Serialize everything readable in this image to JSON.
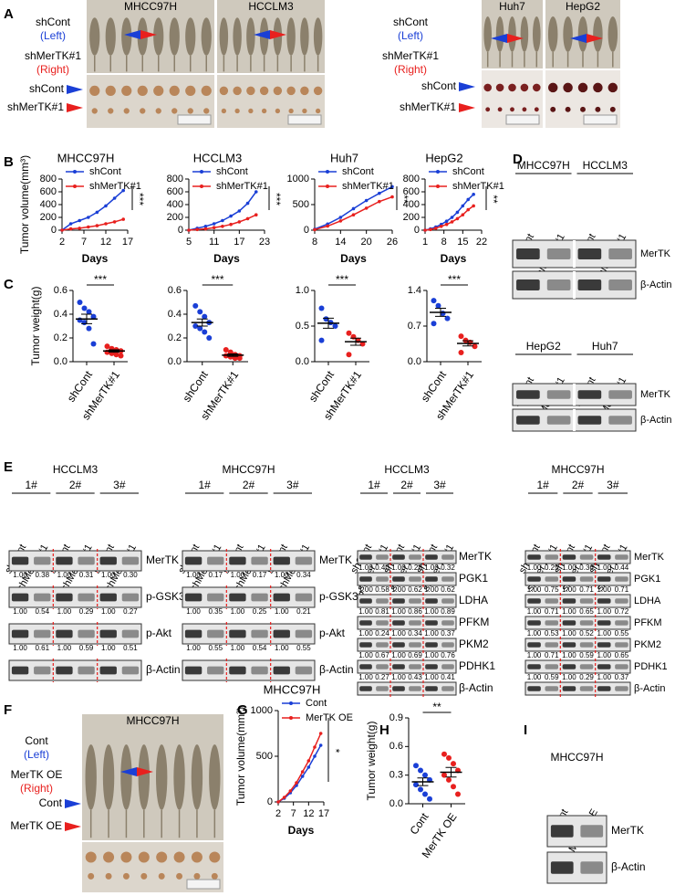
{
  "letters": [
    "A",
    "B",
    "C",
    "D",
    "E",
    "F",
    "G",
    "H",
    "I"
  ],
  "panel_a": [
    {
      "photos": [
        "MHCC97H",
        "HCCLM3"
      ],
      "cont": "shCont",
      "cont_side": "(Left)",
      "treat": "shMerTK#1",
      "treat_side": "(Right)",
      "row_cont": "shCont",
      "row_treat": "shMerTK#1"
    },
    {
      "photos": [
        "Huh7",
        "HepG2"
      ],
      "cont": "shCont",
      "cont_side": "(Left)",
      "treat": "shMerTK#1",
      "treat_side": "(Right)",
      "row_cont": "shCont",
      "row_treat": "shMerTK#1"
    }
  ],
  "panel_f": {
    "photos": [
      "MHCC97H"
    ],
    "cont": "Cont",
    "cont_side": "(Left)",
    "treat": "MerTK OE",
    "treat_side": "(Right)",
    "row_cont": "Cont",
    "row_treat": "MerTK OE"
  },
  "chart_data": [
    {
      "type": "line",
      "title": "MHCC97H",
      "x_label": "Days",
      "y_label": "Tumor volume(mm³)",
      "significance": "***",
      "x": [
        2,
        4,
        6,
        8,
        10,
        12,
        14,
        16
      ],
      "xlim": [
        2,
        17
      ],
      "xticks": [
        2,
        7,
        12,
        17
      ],
      "ylim": [
        0,
        800
      ],
      "yticks": [
        0,
        200,
        400,
        600,
        800
      ],
      "series": [
        {
          "name": "shCont",
          "color": "#1a3fd6",
          "values": [
            0,
            100,
            150,
            200,
            280,
            380,
            500,
            620
          ]
        },
        {
          "name": "shMerTK#1",
          "color": "#e8201e",
          "values": [
            0,
            20,
            30,
            50,
            70,
            100,
            130,
            170
          ]
        }
      ]
    },
    {
      "type": "line",
      "title": "HCCLM3",
      "x_label": "Days",
      "significance": "***",
      "x": [
        5,
        7,
        9,
        11,
        13,
        15,
        17,
        19,
        21
      ],
      "xlim": [
        5,
        23
      ],
      "xticks": [
        5,
        11,
        17,
        23
      ],
      "ylim": [
        0,
        800
      ],
      "yticks": [
        0,
        200,
        400,
        600,
        800
      ],
      "series": [
        {
          "name": "shCont",
          "color": "#1a3fd6",
          "values": [
            0,
            30,
            60,
            100,
            150,
            220,
            300,
            420,
            600
          ]
        },
        {
          "name": "shMerTK#1",
          "color": "#e8201e",
          "values": [
            0,
            10,
            20,
            40,
            60,
            90,
            130,
            180,
            240
          ]
        }
      ]
    },
    {
      "type": "line",
      "title": "Huh7",
      "x_label": "Days",
      "significance": "**",
      "x": [
        8,
        11,
        14,
        17,
        20,
        23,
        26
      ],
      "xlim": [
        8,
        26
      ],
      "xticks": [
        8,
        14,
        20,
        26
      ],
      "ylim": [
        0,
        1000
      ],
      "yticks": [
        0,
        500,
        1000
      ],
      "series": [
        {
          "name": "shCont",
          "color": "#1a3fd6",
          "values": [
            20,
            120,
            250,
            420,
            580,
            720,
            850
          ]
        },
        {
          "name": "shMerTK#1",
          "color": "#e8201e",
          "values": [
            10,
            80,
            180,
            300,
            430,
            560,
            650
          ]
        }
      ]
    },
    {
      "type": "line",
      "title": "HepG2",
      "x_label": "Days",
      "significance": "**",
      "x": [
        1,
        3,
        5,
        7,
        9,
        11,
        13,
        15,
        17,
        19
      ],
      "xlim": [
        1,
        22
      ],
      "xticks": [
        1,
        8,
        15,
        22
      ],
      "ylim": [
        0,
        800
      ],
      "yticks": [
        0,
        200,
        400,
        600,
        800
      ],
      "series": [
        {
          "name": "shCont",
          "color": "#1a3fd6",
          "values": [
            0,
            20,
            50,
            90,
            140,
            200,
            280,
            380,
            480,
            560
          ]
        },
        {
          "name": "shMerTK#1",
          "color": "#e8201e",
          "values": [
            0,
            10,
            30,
            60,
            90,
            130,
            180,
            240,
            320,
            380
          ]
        }
      ]
    },
    {
      "type": "scatter",
      "y_label": "Tumor weight(g)",
      "significance": "***",
      "categories": [
        "shCont",
        "shMerTK#1"
      ],
      "ylim": [
        0,
        0.6
      ],
      "yticks": [
        {
          "value": 0,
          "label": "0.0"
        },
        0.2,
        0.4,
        0.6
      ],
      "groups": [
        {
          "color": "#1a3fd6",
          "values": [
            0.5,
            0.45,
            0.42,
            0.38,
            0.35,
            0.33,
            0.28,
            0.15
          ],
          "mean": 0.36,
          "sem": 0.04
        },
        {
          "color": "#e8201e",
          "values": [
            0.13,
            0.11,
            0.1,
            0.09,
            0.08,
            0.07,
            0.06,
            0.05
          ],
          "mean": 0.09,
          "sem": 0.01
        }
      ]
    },
    {
      "type": "scatter",
      "significance": "***",
      "categories": [
        "shCont",
        "shMerTK#1"
      ],
      "ylim": [
        0,
        0.6
      ],
      "yticks": [
        {
          "value": 0,
          "label": "0.0"
        },
        0.2,
        0.4,
        0.6
      ],
      "groups": [
        {
          "color": "#1a3fd6",
          "values": [
            0.47,
            0.42,
            0.38,
            0.33,
            0.3,
            0.28,
            0.25,
            0.2
          ],
          "mean": 0.33,
          "sem": 0.03
        },
        {
          "color": "#e8201e",
          "values": [
            0.1,
            0.08,
            0.06,
            0.05,
            0.05,
            0.04,
            0.03,
            0.03
          ],
          "mean": 0.055,
          "sem": 0.01
        }
      ]
    },
    {
      "type": "scatter",
      "significance": "***",
      "categories": [
        "shCont",
        "shMerTK#1"
      ],
      "ylim": [
        0,
        1
      ],
      "yticks": [
        {
          "value": 0,
          "label": "0.0"
        },
        0.5,
        {
          "value": 1,
          "label": "1.0"
        }
      ],
      "groups": [
        {
          "color": "#1a3fd6",
          "values": [
            0.75,
            0.6,
            0.55,
            0.5,
            0.3
          ],
          "mean": 0.54,
          "sem": 0.07
        },
        {
          "color": "#e8201e",
          "values": [
            0.4,
            0.35,
            0.3,
            0.25,
            0.1
          ],
          "mean": 0.28,
          "sem": 0.05
        }
      ]
    },
    {
      "type": "scatter",
      "significance": "***",
      "categories": [
        "shCont",
        "shMerTK#1"
      ],
      "ylim": [
        0,
        1.4
      ],
      "yticks": [
        {
          "value": 0,
          "label": "0.0"
        },
        0.7,
        1.4
      ],
      "groups": [
        {
          "color": "#1a3fd6",
          "values": [
            1.2,
            1.1,
            0.95,
            0.85,
            0.75
          ],
          "mean": 0.97,
          "sem": 0.08
        },
        {
          "color": "#e8201e",
          "values": [
            0.5,
            0.42,
            0.38,
            0.3,
            0.18
          ],
          "mean": 0.36,
          "sem": 0.05
        }
      ]
    },
    {
      "type": "line",
      "title": "MHCC97H",
      "x_label": "Days",
      "y_label": "Tumor volume(mm³)",
      "significance": "*",
      "x": [
        2,
        4,
        6,
        8,
        10,
        12,
        14,
        16
      ],
      "xlim": [
        2,
        17
      ],
      "xticks": [
        2,
        7,
        12,
        17
      ],
      "ylim": [
        0,
        1000
      ],
      "yticks": [
        0,
        500,
        1000
      ],
      "series": [
        {
          "name": "Cont",
          "color": "#1a3fd6",
          "values": [
            0,
            40,
            100,
            180,
            280,
            380,
            500,
            620
          ]
        },
        {
          "name": "MerTK OE",
          "color": "#e8201e",
          "values": [
            0,
            50,
            120,
            210,
            330,
            450,
            600,
            750
          ]
        }
      ]
    },
    {
      "type": "scatter",
      "y_label": "Tumor weight(g)",
      "significance": "**",
      "categories": [
        "Cont",
        "MerTK OE"
      ],
      "ylim": [
        0,
        0.9
      ],
      "yticks": [
        {
          "value": 0,
          "label": "0.0"
        },
        0.3,
        0.6,
        0.9
      ],
      "groups": [
        {
          "color": "#1a3fd6",
          "values": [
            0.4,
            0.35,
            0.3,
            0.25,
            0.2,
            0.15,
            0.1,
            0.05
          ],
          "mean": 0.23,
          "sem": 0.04
        },
        {
          "color": "#e8201e",
          "values": [
            0.52,
            0.48,
            0.42,
            0.35,
            0.3,
            0.25,
            0.18,
            0.1
          ],
          "mean": 0.33,
          "sem": 0.05
        }
      ]
    }
  ],
  "blots": [
    {
      "groups": [
        "MHCC97H",
        "HCCLM3"
      ],
      "divider": "gap",
      "lanes": [
        "shCont",
        "shMerTK#1",
        "shCont",
        "shMerTK#1"
      ],
      "rows": [
        {
          "label": "MerTK"
        },
        {
          "label": "β-Actin"
        }
      ]
    },
    {
      "groups": [
        "HepG2",
        "Huh7"
      ],
      "divider": "gap",
      "lanes": [
        "shCont",
        "shMerTK#1",
        "shCont",
        "shMerTK#1"
      ],
      "rows": [
        {
          "label": "MerTK"
        },
        {
          "label": "β-Actin"
        }
      ]
    },
    {
      "title": "HCCLM3",
      "groups": [
        "1#",
        "2#",
        "3#"
      ],
      "divider": "red-dashed",
      "lanes": [
        "shCont",
        "shMerTK#1",
        "shCont",
        "shMerTK#1",
        "shCont",
        "shMerTK#1"
      ],
      "rows": [
        {
          "label": "MerTK",
          "quant": [
            "1.00",
            "0.38",
            "1.00",
            "0.31",
            "1.00",
            "0.30"
          ]
        },
        {
          "label": "p-GSK3β",
          "quant": [
            "1.00",
            "0.54",
            "1.00",
            "0.29",
            "1.00",
            "0.27"
          ]
        },
        {
          "label": "p-Akt",
          "quant": [
            "1.00",
            "0.61",
            "1.00",
            "0.59",
            "1.00",
            "0.51"
          ]
        },
        {
          "label": "β-Actin"
        }
      ]
    },
    {
      "title": "MHCC97H",
      "groups": [
        "1#",
        "2#",
        "3#"
      ],
      "divider": "red-dashed",
      "lanes": [
        "shCont",
        "shMerTK#1",
        "shCont",
        "shMerTK#1",
        "shCont",
        "shMerTK#1"
      ],
      "rows": [
        {
          "label": "MerTK",
          "quant": [
            "1.00",
            "0.17",
            "1.00",
            "0.17",
            "1.00",
            "0.34"
          ]
        },
        {
          "label": "p-GSK3β",
          "quant": [
            "1.00",
            "0.35",
            "1.00",
            "0.25",
            "1.00",
            "0.21"
          ]
        },
        {
          "label": "p-Akt",
          "quant": [
            "1.00",
            "0.55",
            "1.00",
            "0.54",
            "1.00",
            "0.55"
          ]
        },
        {
          "label": "β-Actin"
        }
      ]
    },
    {
      "title": "HCCLM3",
      "groups": [
        "1#",
        "2#",
        "3#"
      ],
      "divider": "red-dashed",
      "lanes": [
        "shCont",
        "shMerTK#1",
        "shCont",
        "shMerTK#1",
        "shCont",
        "shMerTK#1"
      ],
      "rows": [
        {
          "label": "MerTK",
          "quant": [
            "1.00",
            "0.40",
            "1.00",
            "0.28",
            "1.00",
            "0.32"
          ]
        },
        {
          "label": "PGK1",
          "quant": [
            "1.00",
            "0.58",
            "1.00",
            "0.62",
            "1.00",
            "0.62"
          ]
        },
        {
          "label": "LDHA",
          "quant": [
            "1.00",
            "0.81",
            "1.00",
            "0.86",
            "1.00",
            "0.89"
          ]
        },
        {
          "label": "PFKM",
          "quant": [
            "1.00",
            "0.24",
            "1.00",
            "0.34",
            "1.00",
            "0.37"
          ]
        },
        {
          "label": "PKM2",
          "quant": [
            "1.00",
            "0.67",
            "1.00",
            "0.69",
            "1.00",
            "0.76"
          ]
        },
        {
          "label": "PDHK1",
          "quant": [
            "1.00",
            "0.27",
            "1.00",
            "0.43",
            "1.00",
            "0.41"
          ]
        },
        {
          "label": "β-Actin"
        }
      ]
    },
    {
      "title": "MHCC97H",
      "groups": [
        "1#",
        "2#",
        "3#"
      ],
      "divider": "red-dashed",
      "lanes": [
        "shCont",
        "shMerTK#1",
        "shCont",
        "shMerTK#1",
        "shCont",
        "shMerTK#1"
      ],
      "rows": [
        {
          "label": "MerTK",
          "quant": [
            "1.00",
            "0.25",
            "1.00",
            "0.36",
            "1.00",
            "0.44"
          ]
        },
        {
          "label": "PGK1",
          "quant": [
            "1.00",
            "0.75",
            "1.00",
            "0.71",
            "1.00",
            "0.71"
          ]
        },
        {
          "label": "LDHA",
          "quant": [
            "1.00",
            "0.71",
            "1.00",
            "0.65",
            "1.00",
            "0.72"
          ]
        },
        {
          "label": "PFKM",
          "quant": [
            "1.00",
            "0.53",
            "1.00",
            "0.52",
            "1.00",
            "0.55"
          ]
        },
        {
          "label": "PKM2",
          "quant": [
            "1.00",
            "0.71",
            "1.00",
            "0.59",
            "1.00",
            "0.65"
          ]
        },
        {
          "label": "PDHK1",
          "quant": [
            "1.00",
            "0.59",
            "1.00",
            "0.29",
            "1.00",
            "0.37"
          ]
        },
        {
          "label": "β-Actin"
        }
      ]
    },
    {
      "title": "MHCC97H",
      "lanes": [
        "Cont",
        "MerTK OE"
      ],
      "rows": [
        {
          "label": "MerTK"
        },
        {
          "label": "β-Actin"
        }
      ]
    }
  ]
}
